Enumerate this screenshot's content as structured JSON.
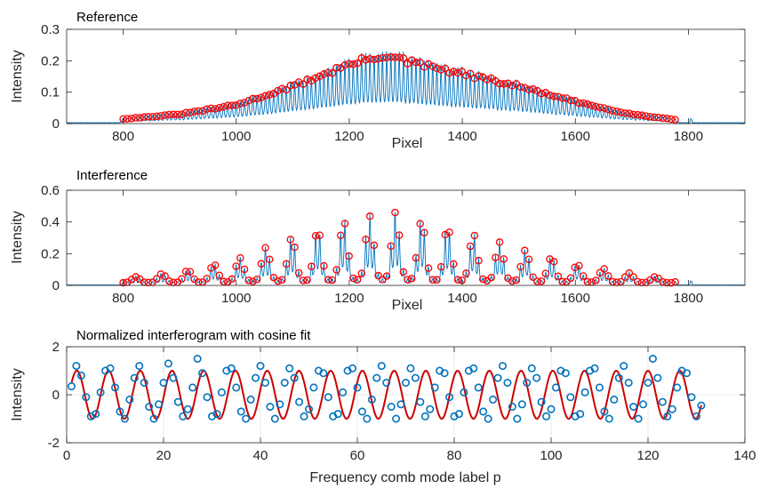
{
  "chart_data": [
    {
      "type": "line",
      "title": "Reference",
      "xlabel": "Pixel",
      "ylabel": "Intensity",
      "xlim": [
        700,
        1900
      ],
      "ylim": [
        0,
        0.3
      ],
      "xticks": [
        800,
        1000,
        1200,
        1400,
        1600,
        1800
      ],
      "yticks": [
        0,
        0.1,
        0.2,
        0.3
      ],
      "grid": false,
      "colors": {
        "line": "#0072BD",
        "markers": "#FF0000"
      },
      "comb": {
        "x_start": 800,
        "x_end": 1780,
        "spacing": 7.4
      },
      "series": [
        {
          "style": "line",
          "x": [
            700,
            800,
            900,
            1000,
            1100,
            1200,
            1260,
            1300,
            1400,
            1500,
            1600,
            1700,
            1780,
            1900
          ],
          "y": [
            0.005,
            0.015,
            0.03,
            0.06,
            0.12,
            0.19,
            0.22,
            0.2,
            0.16,
            0.12,
            0.07,
            0.03,
            0.012,
            0.005
          ]
        },
        {
          "style": "markers",
          "x": [
            800,
            900,
            1000,
            1100,
            1200,
            1260,
            1300,
            1400,
            1500,
            1600,
            1700,
            1780
          ],
          "y": [
            0.015,
            0.03,
            0.06,
            0.12,
            0.19,
            0.22,
            0.2,
            0.16,
            0.12,
            0.07,
            0.03,
            0.012
          ]
        }
      ]
    },
    {
      "type": "line",
      "title": "Interference",
      "xlabel": "Pixel",
      "ylabel": "Intensity",
      "xlim": [
        700,
        1900
      ],
      "ylim": [
        0,
        0.6
      ],
      "xticks": [
        800,
        1000,
        1200,
        1400,
        1600,
        1800
      ],
      "yticks": [
        0,
        0.2,
        0.4,
        0.6
      ],
      "grid": false,
      "colors": {
        "line": "#0072BD",
        "markers": "#FF0000"
      },
      "comb": {
        "x_start": 800,
        "x_end": 1780,
        "spacing": 7.4,
        "fringe_period_px": 46
      },
      "series": [
        {
          "style": "line",
          "x": [
            700,
            800,
            900,
            1000,
            1100,
            1200,
            1280,
            1300,
            1400,
            1500,
            1600,
            1700,
            1780,
            1900
          ],
          "y": [
            0.005,
            0.03,
            0.07,
            0.15,
            0.29,
            0.4,
            0.45,
            0.42,
            0.33,
            0.22,
            0.12,
            0.06,
            0.02,
            0.005
          ]
        },
        {
          "style": "markers",
          "x": [
            800,
            900,
            1000,
            1100,
            1200,
            1280,
            1300,
            1400,
            1500,
            1600,
            1700,
            1780
          ],
          "y": [
            0.03,
            0.07,
            0.15,
            0.29,
            0.4,
            0.45,
            0.42,
            0.33,
            0.22,
            0.12,
            0.06,
            0.02
          ]
        }
      ]
    },
    {
      "type": "scatter",
      "title": "Normalized interferogram with cosine fit",
      "xlabel": "Frequency comb mode label p",
      "ylabel": "Intensity",
      "xlim": [
        0,
        140
      ],
      "ylim": [
        -2,
        2
      ],
      "xticks": [
        0,
        20,
        40,
        60,
        80,
        100,
        120,
        140
      ],
      "yticks": [
        -2,
        0,
        2
      ],
      "grid": true,
      "colors": {
        "markers": "#0072BD",
        "fit": "#CC0000"
      },
      "series": [
        {
          "style": "markers",
          "x": [
            1,
            2,
            3,
            4,
            5,
            6,
            7,
            8,
            9,
            10,
            11,
            12,
            13,
            14,
            15,
            16,
            17,
            18,
            19,
            20,
            21,
            22,
            23,
            24,
            25,
            26,
            27,
            28,
            29,
            30,
            31,
            32,
            33,
            34,
            35,
            36,
            37,
            38,
            39,
            40,
            41,
            42,
            43,
            44,
            45,
            46,
            47,
            48,
            49,
            50,
            51,
            52,
            53,
            54,
            55,
            56,
            57,
            58,
            59,
            60,
            61,
            62,
            63,
            64,
            65,
            66,
            67,
            68,
            69,
            70,
            71,
            72,
            73,
            74,
            75,
            76,
            77,
            78,
            79,
            80,
            81,
            82,
            83,
            84,
            85,
            86,
            87,
            88,
            89,
            90,
            91,
            92,
            93,
            94,
            95,
            96,
            97,
            98,
            99,
            100,
            101,
            102,
            103,
            104,
            105,
            106,
            107,
            108,
            109,
            110,
            111,
            112,
            113,
            114,
            115,
            116,
            117,
            118,
            119,
            120,
            121,
            122,
            123,
            124,
            125,
            126,
            127,
            128,
            129,
            130,
            131
          ],
          "y": [
            0.35,
            1.2,
            0.8,
            -0.1,
            -0.9,
            -0.8,
            0.1,
            1.0,
            1.1,
            0.3,
            -0.7,
            -1.0,
            -0.2,
            0.7,
            1.2,
            0.5,
            -0.5,
            -1.0,
            -0.4,
            0.5,
            1.3,
            0.7,
            -0.3,
            -0.9,
            -0.6,
            0.3,
            1.5,
            0.9,
            -0.1,
            -0.9,
            -0.8,
            0.1,
            1.0,
            1.1,
            0.3,
            -0.7,
            -1.0,
            -0.2,
            0.7,
            1.2,
            0.5,
            -0.5,
            -1.0,
            -0.4,
            0.5,
            1.1,
            0.7,
            -0.3,
            -0.9,
            -0.6,
            0.3,
            1.0,
            0.9,
            -0.1,
            -0.9,
            -0.8,
            0.1,
            1.0,
            1.1,
            0.3,
            -0.7,
            -1.0,
            -0.2,
            0.7,
            1.2,
            0.5,
            -0.5,
            -1.0,
            -0.4,
            0.5,
            1.1,
            0.7,
            -0.3,
            -0.9,
            -0.6,
            0.3,
            1.0,
            0.9,
            -0.1,
            -0.9,
            -0.8,
            0.1,
            1.0,
            1.1,
            0.3,
            -0.7,
            -1.0,
            -0.2,
            0.7,
            1.2,
            0.5,
            -0.5,
            -1.0,
            -0.4,
            0.5,
            1.1,
            0.7,
            -0.3,
            -0.9,
            -0.6,
            0.3,
            1.0,
            0.9,
            -0.1,
            -0.9,
            -0.8,
            0.1,
            1.0,
            1.1,
            0.3,
            -0.7,
            -1.0,
            -0.2,
            0.7,
            1.2,
            0.5,
            -0.5,
            -1.0,
            -0.4,
            0.5,
            1.5,
            0.7,
            -0.3,
            -0.9,
            -0.6,
            0.3,
            1.0,
            0.9,
            -0.1,
            -0.9,
            -0.45
          ]
        },
        {
          "style": "line",
          "name": "cosine fit",
          "amplitude": 1.0,
          "period": 6.55,
          "phase_p": 2.1
        }
      ]
    }
  ]
}
